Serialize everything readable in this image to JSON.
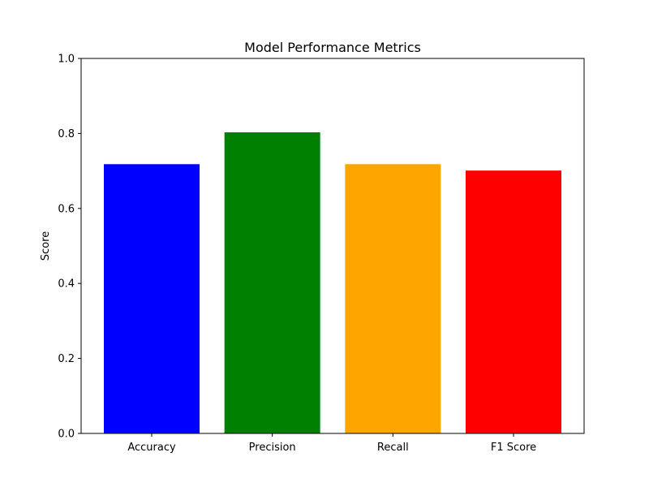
{
  "chart_data": {
    "type": "bar",
    "title": "Model Performance Metrics",
    "xlabel": "",
    "ylabel": "Score",
    "ylim": [
      0,
      1.0
    ],
    "yticks": [
      "0.0",
      "0.2",
      "0.4",
      "0.6",
      "0.8",
      "1.0"
    ],
    "categories": [
      "Accuracy",
      "Precision",
      "Recall",
      "F1 Score"
    ],
    "values": [
      0.718,
      0.803,
      0.718,
      0.701
    ],
    "colors": [
      "#0000ff",
      "#008000",
      "#ffa500",
      "#ff0000"
    ],
    "grid": false,
    "legend": "none"
  }
}
